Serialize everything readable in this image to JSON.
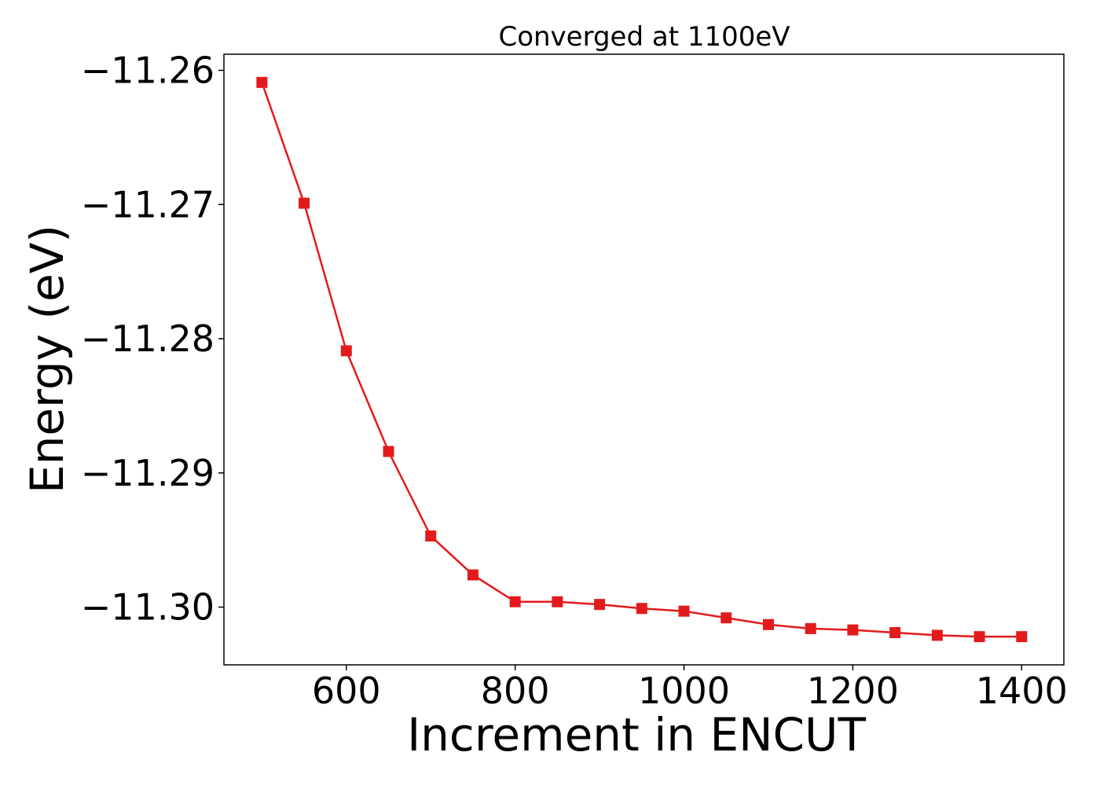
{
  "chart_data": {
    "type": "line",
    "title": "Converged at 1100eV",
    "xlabel": "Increment in ENCUT",
    "ylabel": "Energy (eV)",
    "xlim": [
      455,
      1450
    ],
    "ylim": [
      -11.3043,
      -11.2588
    ],
    "xticks": [
      600,
      800,
      1000,
      1200,
      1400
    ],
    "xtick_labels": [
      "600",
      "800",
      "1000",
      "1200",
      "1400"
    ],
    "yticks": [
      -11.26,
      -11.27,
      -11.28,
      -11.29,
      -11.3
    ],
    "ytick_labels": [
      "−11.26",
      "−11.27",
      "−11.28",
      "−11.29",
      "−11.30"
    ],
    "grid": false,
    "legend": "none",
    "marker": "square",
    "color": "#e31a1c",
    "series": [
      {
        "x": [
          500,
          550,
          600,
          650,
          700,
          750,
          800,
          850,
          900,
          950,
          1000,
          1050,
          1100,
          1150,
          1200,
          1250,
          1300,
          1350,
          1400
        ],
        "y": [
          -11.2609,
          -11.2699,
          -11.2809,
          -11.2884,
          -11.2947,
          -11.2976,
          -11.2996,
          -11.2996,
          -11.2998,
          -11.3001,
          -11.3003,
          -11.3008,
          -11.3013,
          -11.3016,
          -11.3017,
          -11.3019,
          -11.3021,
          -11.3022,
          -11.3022
        ]
      }
    ]
  }
}
